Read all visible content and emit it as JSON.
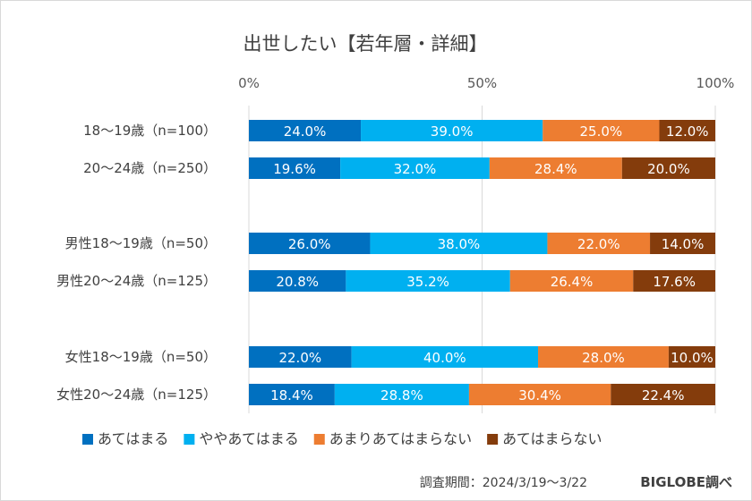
{
  "chart_data": {
    "type": "bar",
    "orientation": "horizontal",
    "stacked": true,
    "title": "出世したい【若年層・詳細】",
    "xlim": [
      0,
      100
    ],
    "xticks": [
      "0%",
      "50%",
      "100%"
    ],
    "legend_position": "bottom",
    "grid": true,
    "categories": [
      "18～19歳（n=100）",
      "20～24歳（n=250）",
      "男性18～19歳（n=50）",
      "男性20～24歳（n=125）",
      "女性18～19歳（n=50）",
      "女性20～24歳（n=125）"
    ],
    "series": [
      {
        "name": "あてはまる",
        "color": "#0070c0",
        "values": [
          24.0,
          19.6,
          26.0,
          20.8,
          22.0,
          18.4
        ]
      },
      {
        "name": "ややあてはまる",
        "color": "#00b0f0",
        "values": [
          39.0,
          32.0,
          38.0,
          35.2,
          40.0,
          28.8
        ]
      },
      {
        "name": "あまりあてはまらない",
        "color": "#ed7d31",
        "values": [
          25.0,
          28.4,
          22.0,
          26.4,
          28.0,
          30.4
        ]
      },
      {
        "name": "あてはまらない",
        "color": "#843c0c",
        "values": [
          12.0,
          20.0,
          14.0,
          17.6,
          10.0,
          22.4
        ]
      }
    ],
    "value_format": "percent_1dp"
  },
  "footer": {
    "period": "調査期間：2024/3/19～3/22",
    "brand": "BIGLOBE調べ"
  }
}
